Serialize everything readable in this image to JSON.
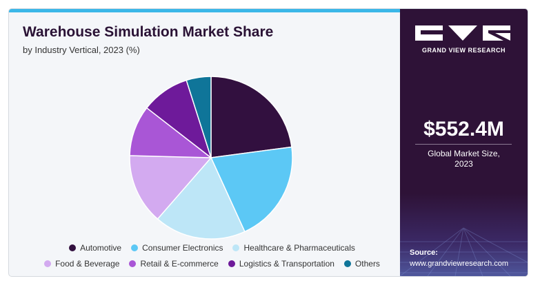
{
  "header": {
    "title": "Warehouse Simulation Market Share",
    "subtitle": "by Industry Vertical, 2023 (%)"
  },
  "sidebar": {
    "brand": "GRAND VIEW RESEARCH",
    "market_value": "$552.4M",
    "market_label_line1": "Global Market Size,",
    "market_label_line2": "2023",
    "source_label": "Source:",
    "source_url": "www.grandviewresearch.com"
  },
  "colors": {
    "sidebar_bg": "#2e1237",
    "accent_bar": "#3bb7e8",
    "title": "#2a1235"
  },
  "chart_data": {
    "type": "pie",
    "title": "Warehouse Simulation Market Share",
    "subtitle": "by Industry Vertical, 2023 (%)",
    "legend_position": "bottom",
    "slices": [
      {
        "label": "Automotive",
        "value": 22.9,
        "color": "#32103f"
      },
      {
        "label": "Consumer Electronics",
        "value": 20.3,
        "color": "#5cc8f5"
      },
      {
        "label": "Healthcare & Pharmaceuticals",
        "value": 18.2,
        "color": "#bde6f7"
      },
      {
        "label": "Food & Beverage",
        "value": 14.0,
        "color": "#d3aaf0"
      },
      {
        "label": "Retail & E-commerce",
        "value": 10.1,
        "color": "#a956d6"
      },
      {
        "label": "Logistics & Transportation",
        "value": 9.6,
        "color": "#6e1a9a"
      },
      {
        "label": "Others",
        "value": 4.9,
        "color": "#0f7599"
      }
    ]
  }
}
